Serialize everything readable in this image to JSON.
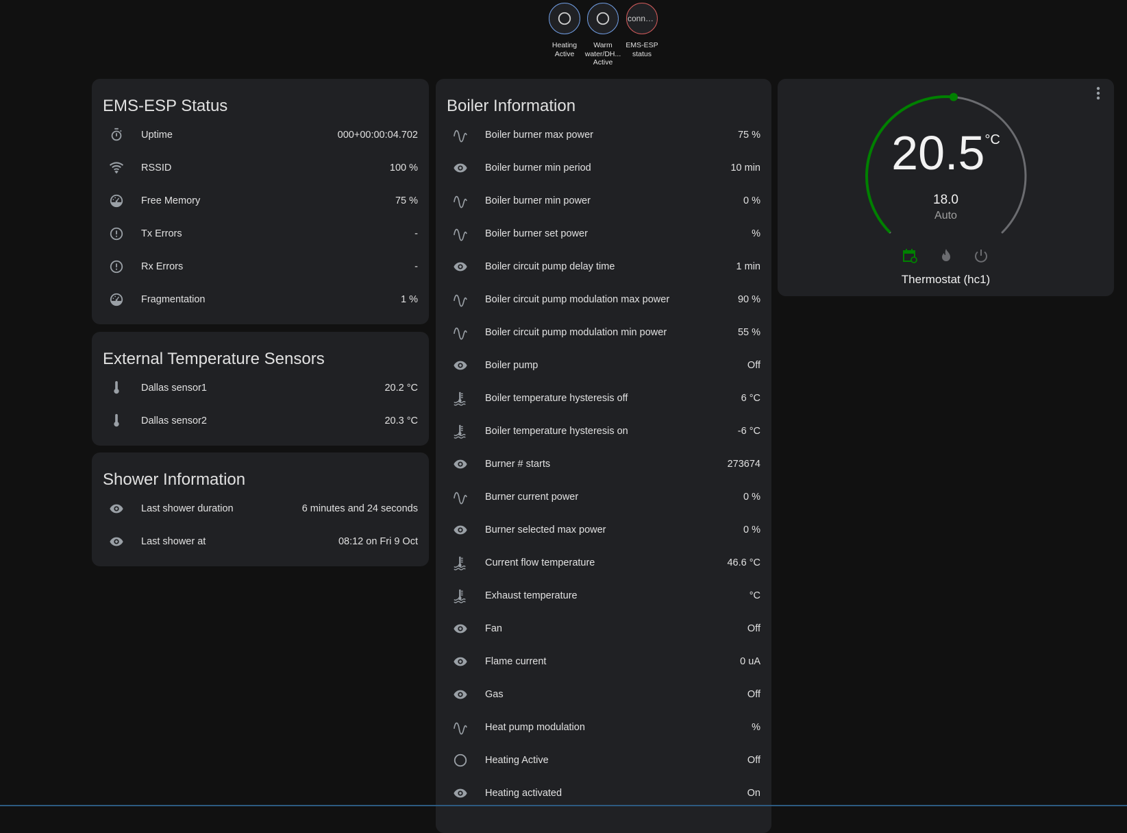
{
  "badges": [
    {
      "label": "Heating Active",
      "icon": "circle-outline-icon",
      "state": ""
    },
    {
      "label": "Warm water/DH... Active",
      "icon": "circle-outline-icon",
      "state": ""
    },
    {
      "label": "EMS-ESP status",
      "icon": "",
      "state": "conne..."
    }
  ],
  "status_card": {
    "title": "EMS-ESP Status",
    "rows": [
      {
        "icon": "timer",
        "name": "Uptime",
        "value": "000+00:00:04.702"
      },
      {
        "icon": "wifi",
        "name": "RSSID",
        "value": "100 %"
      },
      {
        "icon": "gauge",
        "name": "Free Memory",
        "value": "75 %"
      },
      {
        "icon": "alert",
        "name": "Tx Errors",
        "value": "-"
      },
      {
        "icon": "alert",
        "name": "Rx Errors",
        "value": "-"
      },
      {
        "icon": "gauge",
        "name": "Fragmentation",
        "value": "1 %"
      }
    ]
  },
  "sensors_card": {
    "title": "External Temperature Sensors",
    "rows": [
      {
        "icon": "thermometer",
        "name": "Dallas sensor1",
        "value": "20.2 °C"
      },
      {
        "icon": "thermometer",
        "name": "Dallas sensor2",
        "value": "20.3 °C"
      }
    ]
  },
  "shower_card": {
    "title": "Shower Information",
    "rows": [
      {
        "icon": "eye",
        "name": "Last shower duration",
        "value": "6 minutes and 24 seconds"
      },
      {
        "icon": "eye",
        "name": "Last shower at",
        "value": "08:12 on Fri 9 Oct"
      }
    ]
  },
  "boiler_card": {
    "title": "Boiler Information",
    "rows": [
      {
        "icon": "sine",
        "name": "Boiler burner max power",
        "value": "75 %"
      },
      {
        "icon": "eye",
        "name": "Boiler burner min period",
        "value": "10 min"
      },
      {
        "icon": "sine",
        "name": "Boiler burner min power",
        "value": "0 %"
      },
      {
        "icon": "sine",
        "name": "Boiler burner set power",
        "value": "%"
      },
      {
        "icon": "eye",
        "name": "Boiler circuit pump delay time",
        "value": "1 min"
      },
      {
        "icon": "sine",
        "name": "Boiler circuit pump modulation max power",
        "value": "90 %"
      },
      {
        "icon": "sine",
        "name": "Boiler circuit pump modulation min power",
        "value": "55 %"
      },
      {
        "icon": "eye",
        "name": "Boiler pump",
        "value": "Off"
      },
      {
        "icon": "water-thermometer",
        "name": "Boiler temperature hysteresis off",
        "value": "6 °C"
      },
      {
        "icon": "water-thermometer",
        "name": "Boiler temperature hysteresis on",
        "value": "-6 °C"
      },
      {
        "icon": "eye",
        "name": "Burner # starts",
        "value": "273674"
      },
      {
        "icon": "sine",
        "name": "Burner current power",
        "value": "0 %"
      },
      {
        "icon": "eye",
        "name": "Burner selected max power",
        "value": "0 %"
      },
      {
        "icon": "water-thermometer",
        "name": "Current flow temperature",
        "value": "46.6 °C"
      },
      {
        "icon": "water-thermometer",
        "name": "Exhaust temperature",
        "value": "°C"
      },
      {
        "icon": "eye",
        "name": "Fan",
        "value": "Off"
      },
      {
        "icon": "eye",
        "name": "Flame current",
        "value": "0 uA"
      },
      {
        "icon": "eye",
        "name": "Gas",
        "value": "Off"
      },
      {
        "icon": "sine",
        "name": "Heat pump modulation",
        "value": "%"
      },
      {
        "icon": "circle-outline",
        "name": "Heating Active",
        "value": "Off"
      },
      {
        "icon": "eye",
        "name": "Heating activated",
        "value": "On"
      }
    ]
  },
  "thermostat": {
    "current": "20.5",
    "unit": "°C",
    "target": "18.0",
    "mode": "Auto",
    "name": "Thermostat (hc1)",
    "range_min": 5,
    "range_max": 30,
    "target_value": 18.0,
    "modes": [
      {
        "icon": "calendar-sync-icon",
        "active": true
      },
      {
        "icon": "fire-icon",
        "active": false
      },
      {
        "icon": "power-icon",
        "active": false
      }
    ],
    "accent": "#008000"
  },
  "colors": {
    "background": "#111111",
    "card": "#202124",
    "text": "#e1e1e1",
    "icon": "#9aa0a6",
    "badge_blue": "#6f9be0",
    "badge_red": "#d05a5a",
    "active_green": "#008000"
  }
}
